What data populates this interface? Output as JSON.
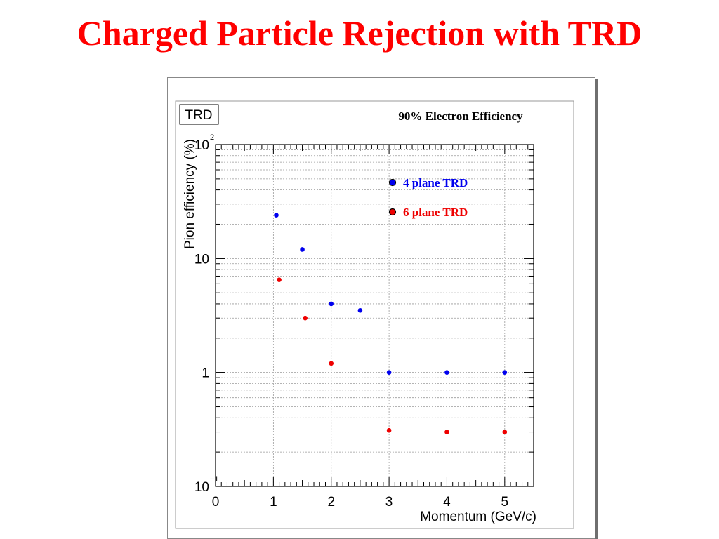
{
  "slide": {
    "title": "Charged Particle Rejection with TRD"
  },
  "chart_data": {
    "type": "scatter",
    "panel_label": "TRD",
    "title": "90% Electron Efficiency",
    "xlabel": "Momentum (GeV/c)",
    "ylabel": "Pion efficiency (%)",
    "xlim": [
      0,
      5.5
    ],
    "ylim": [
      0.1,
      100
    ],
    "yscale": "log",
    "grid": true,
    "x_ticks": [
      "0",
      "1",
      "2",
      "3",
      "4",
      "5"
    ],
    "y_ticks": [
      {
        "value": 100,
        "base": "10",
        "exp": "2"
      },
      {
        "value": 10,
        "base": "10",
        "exp": ""
      },
      {
        "value": 1,
        "base": "1",
        "exp": ""
      },
      {
        "value": 0.1,
        "base": "10",
        "exp": "−1"
      }
    ],
    "legend_position": "top-right",
    "series": [
      {
        "name": "4 plane TRD",
        "color": "#0000ee",
        "x": [
          1.05,
          1.5,
          2.0,
          2.5,
          3.0,
          4.0,
          5.0
        ],
        "y": [
          24,
          12,
          4.0,
          3.5,
          1.0,
          1.0,
          1.0
        ]
      },
      {
        "name": "6 plane TRD",
        "color": "#ee0000",
        "x": [
          1.1,
          1.55,
          2.0,
          3.0,
          4.0,
          5.0
        ],
        "y": [
          6.5,
          3.0,
          1.2,
          0.31,
          0.3,
          0.3
        ]
      }
    ]
  }
}
